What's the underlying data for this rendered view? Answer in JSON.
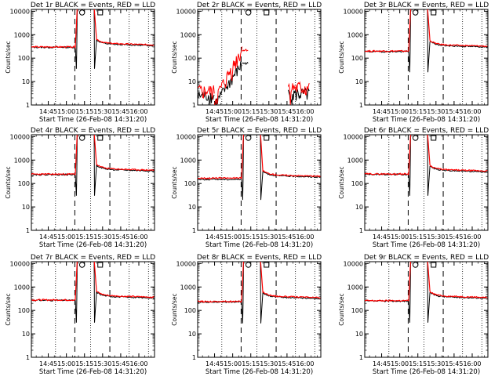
{
  "chart_data": [
    {
      "type": "line",
      "title": "Det 1r BLACK = Events, RED = LLD",
      "xlabel": "Start Time (26-Feb-08 14:31:20)",
      "ylabel": "Counts/sec",
      "yscale": "log",
      "ylim": [
        1,
        12000
      ],
      "xlim": [
        "14:31",
        "16:13"
      ],
      "x_ticks": [
        "14:45",
        "15:00",
        "15:15",
        "15:30",
        "15:45",
        "16:00"
      ],
      "y_ticks": [
        "1",
        "10",
        "100",
        "1000",
        "10000"
      ],
      "series": [
        {
          "color": "#000000",
          "level": 290
        },
        {
          "color": "#ff0000",
          "level": 300
        }
      ],
      "post_level": 400,
      "dip": 35,
      "noisy": false
    },
    {
      "type": "line",
      "title": "Det 2r BLACK = Events, RED = LLD",
      "xlabel": "Start Time (26-Feb-08 14:31:20)",
      "ylabel": "Counts/sec",
      "yscale": "log",
      "ylim": [
        1,
        12000
      ],
      "xlim": [
        "14:31",
        "16:13"
      ],
      "x_ticks": [
        "14:45",
        "15:00",
        "15:15",
        "15:30",
        "15:45",
        "16:00"
      ],
      "y_ticks": [
        "1",
        "10",
        "100",
        "1000",
        "10000"
      ],
      "series": [
        {
          "color": "#000000",
          "level": 0
        },
        {
          "color": "#ff0000",
          "level": 0
        }
      ],
      "post_level": 0,
      "dip": 0,
      "noisy": true
    },
    {
      "type": "line",
      "title": "Det 3r BLACK = Events, RED = LLD",
      "xlabel": "Start Time (26-Feb-08 14:31:20)",
      "ylabel": "Counts/sec",
      "yscale": "log",
      "ylim": [
        1,
        12000
      ],
      "xlim": [
        "14:31",
        "16:13"
      ],
      "x_ticks": [
        "14:45",
        "15:00",
        "15:15",
        "15:30",
        "15:45",
        "16:00"
      ],
      "y_ticks": [
        "1",
        "10",
        "100",
        "1000",
        "10000"
      ],
      "series": [
        {
          "color": "#000000",
          "level": 190
        },
        {
          "color": "#ff0000",
          "level": 200
        }
      ],
      "post_level": 350,
      "dip": 25,
      "noisy": false
    },
    {
      "type": "line",
      "title": "Det 4r BLACK = Events, RED = LLD",
      "xlabel": "Start Time (26-Feb-08 14:31:20)",
      "ylabel": "Counts/sec",
      "yscale": "log",
      "ylim": [
        1,
        12000
      ],
      "xlim": [
        "14:31",
        "16:13"
      ],
      "x_ticks": [
        "14:45",
        "15:00",
        "15:15",
        "15:30",
        "15:45",
        "16:00"
      ],
      "y_ticks": [
        "1",
        "10",
        "100",
        "1000",
        "10000"
      ],
      "series": [
        {
          "color": "#000000",
          "level": 240
        },
        {
          "color": "#ff0000",
          "level": 250
        }
      ],
      "post_level": 400,
      "dip": 30,
      "noisy": false
    },
    {
      "type": "line",
      "title": "Det 5r BLACK = Events, RED = LLD",
      "xlabel": "Start Time (26-Feb-08 14:31:20)",
      "ylabel": "Counts/sec",
      "yscale": "log",
      "ylim": [
        1,
        12000
      ],
      "xlim": [
        "14:31",
        "16:13"
      ],
      "x_ticks": [
        "14:45",
        "15:00",
        "15:15",
        "15:30",
        "15:45",
        "16:00"
      ],
      "y_ticks": [
        "1",
        "10",
        "100",
        "1000",
        "10000"
      ],
      "series": [
        {
          "color": "#000000",
          "level": 150
        },
        {
          "color": "#ff0000",
          "level": 170
        }
      ],
      "post_level": 220,
      "dip": 20,
      "noisy": false
    },
    {
      "type": "line",
      "title": "Det 6r BLACK = Events, RED = LLD",
      "xlabel": "Start Time (26-Feb-08 14:31:20)",
      "ylabel": "Counts/sec",
      "yscale": "log",
      "ylim": [
        1,
        12000
      ],
      "xlim": [
        "14:31",
        "16:13"
      ],
      "x_ticks": [
        "14:45",
        "15:00",
        "15:15",
        "15:30",
        "15:45",
        "16:00"
      ],
      "y_ticks": [
        "1",
        "10",
        "100",
        "1000",
        "10000"
      ],
      "series": [
        {
          "color": "#000000",
          "level": 245
        },
        {
          "color": "#ff0000",
          "level": 255
        }
      ],
      "post_level": 370,
      "dip": 30,
      "noisy": false
    },
    {
      "type": "line",
      "title": "Det 7r BLACK = Events, RED = LLD",
      "xlabel": "Start Time (26-Feb-08 14:31:20)",
      "ylabel": "Counts/sec",
      "yscale": "log",
      "ylim": [
        1,
        12000
      ],
      "xlim": [
        "14:31",
        "16:13"
      ],
      "x_ticks": [
        "14:45",
        "15:00",
        "15:15",
        "15:30",
        "15:45",
        "16:00"
      ],
      "y_ticks": [
        "1",
        "10",
        "100",
        "1000",
        "10000"
      ],
      "series": [
        {
          "color": "#000000",
          "level": 270
        },
        {
          "color": "#ff0000",
          "level": 280
        }
      ],
      "post_level": 400,
      "dip": 30,
      "noisy": false
    },
    {
      "type": "line",
      "title": "Det 8r BLACK = Events, RED = LLD",
      "xlabel": "Start Time (26-Feb-08 14:31:20)",
      "ylabel": "Counts/sec",
      "yscale": "log",
      "ylim": [
        1,
        12000
      ],
      "xlim": [
        "14:31",
        "16:13"
      ],
      "x_ticks": [
        "14:45",
        "15:00",
        "15:15",
        "15:30",
        "15:45",
        "16:00"
      ],
      "y_ticks": [
        "1",
        "10",
        "100",
        "1000",
        "10000"
      ],
      "series": [
        {
          "color": "#000000",
          "level": 230
        },
        {
          "color": "#ff0000",
          "level": 240
        }
      ],
      "post_level": 380,
      "dip": 28,
      "noisy": false
    },
    {
      "type": "line",
      "title": "Det 9r BLACK = Events, RED = LLD",
      "xlabel": "Start Time (26-Feb-08 14:31:20)",
      "ylabel": "Counts/sec",
      "yscale": "log",
      "ylim": [
        1,
        12000
      ],
      "xlim": [
        "14:31",
        "16:13"
      ],
      "x_ticks": [
        "14:45",
        "15:00",
        "15:15",
        "15:30",
        "15:45",
        "16:00"
      ],
      "y_ticks": [
        "1",
        "10",
        "100",
        "1000",
        "10000"
      ],
      "series": [
        {
          "color": "#000000",
          "level": 250
        },
        {
          "color": "#ff0000",
          "level": 260
        }
      ],
      "post_level": 390,
      "dip": 30,
      "noisy": false
    }
  ]
}
